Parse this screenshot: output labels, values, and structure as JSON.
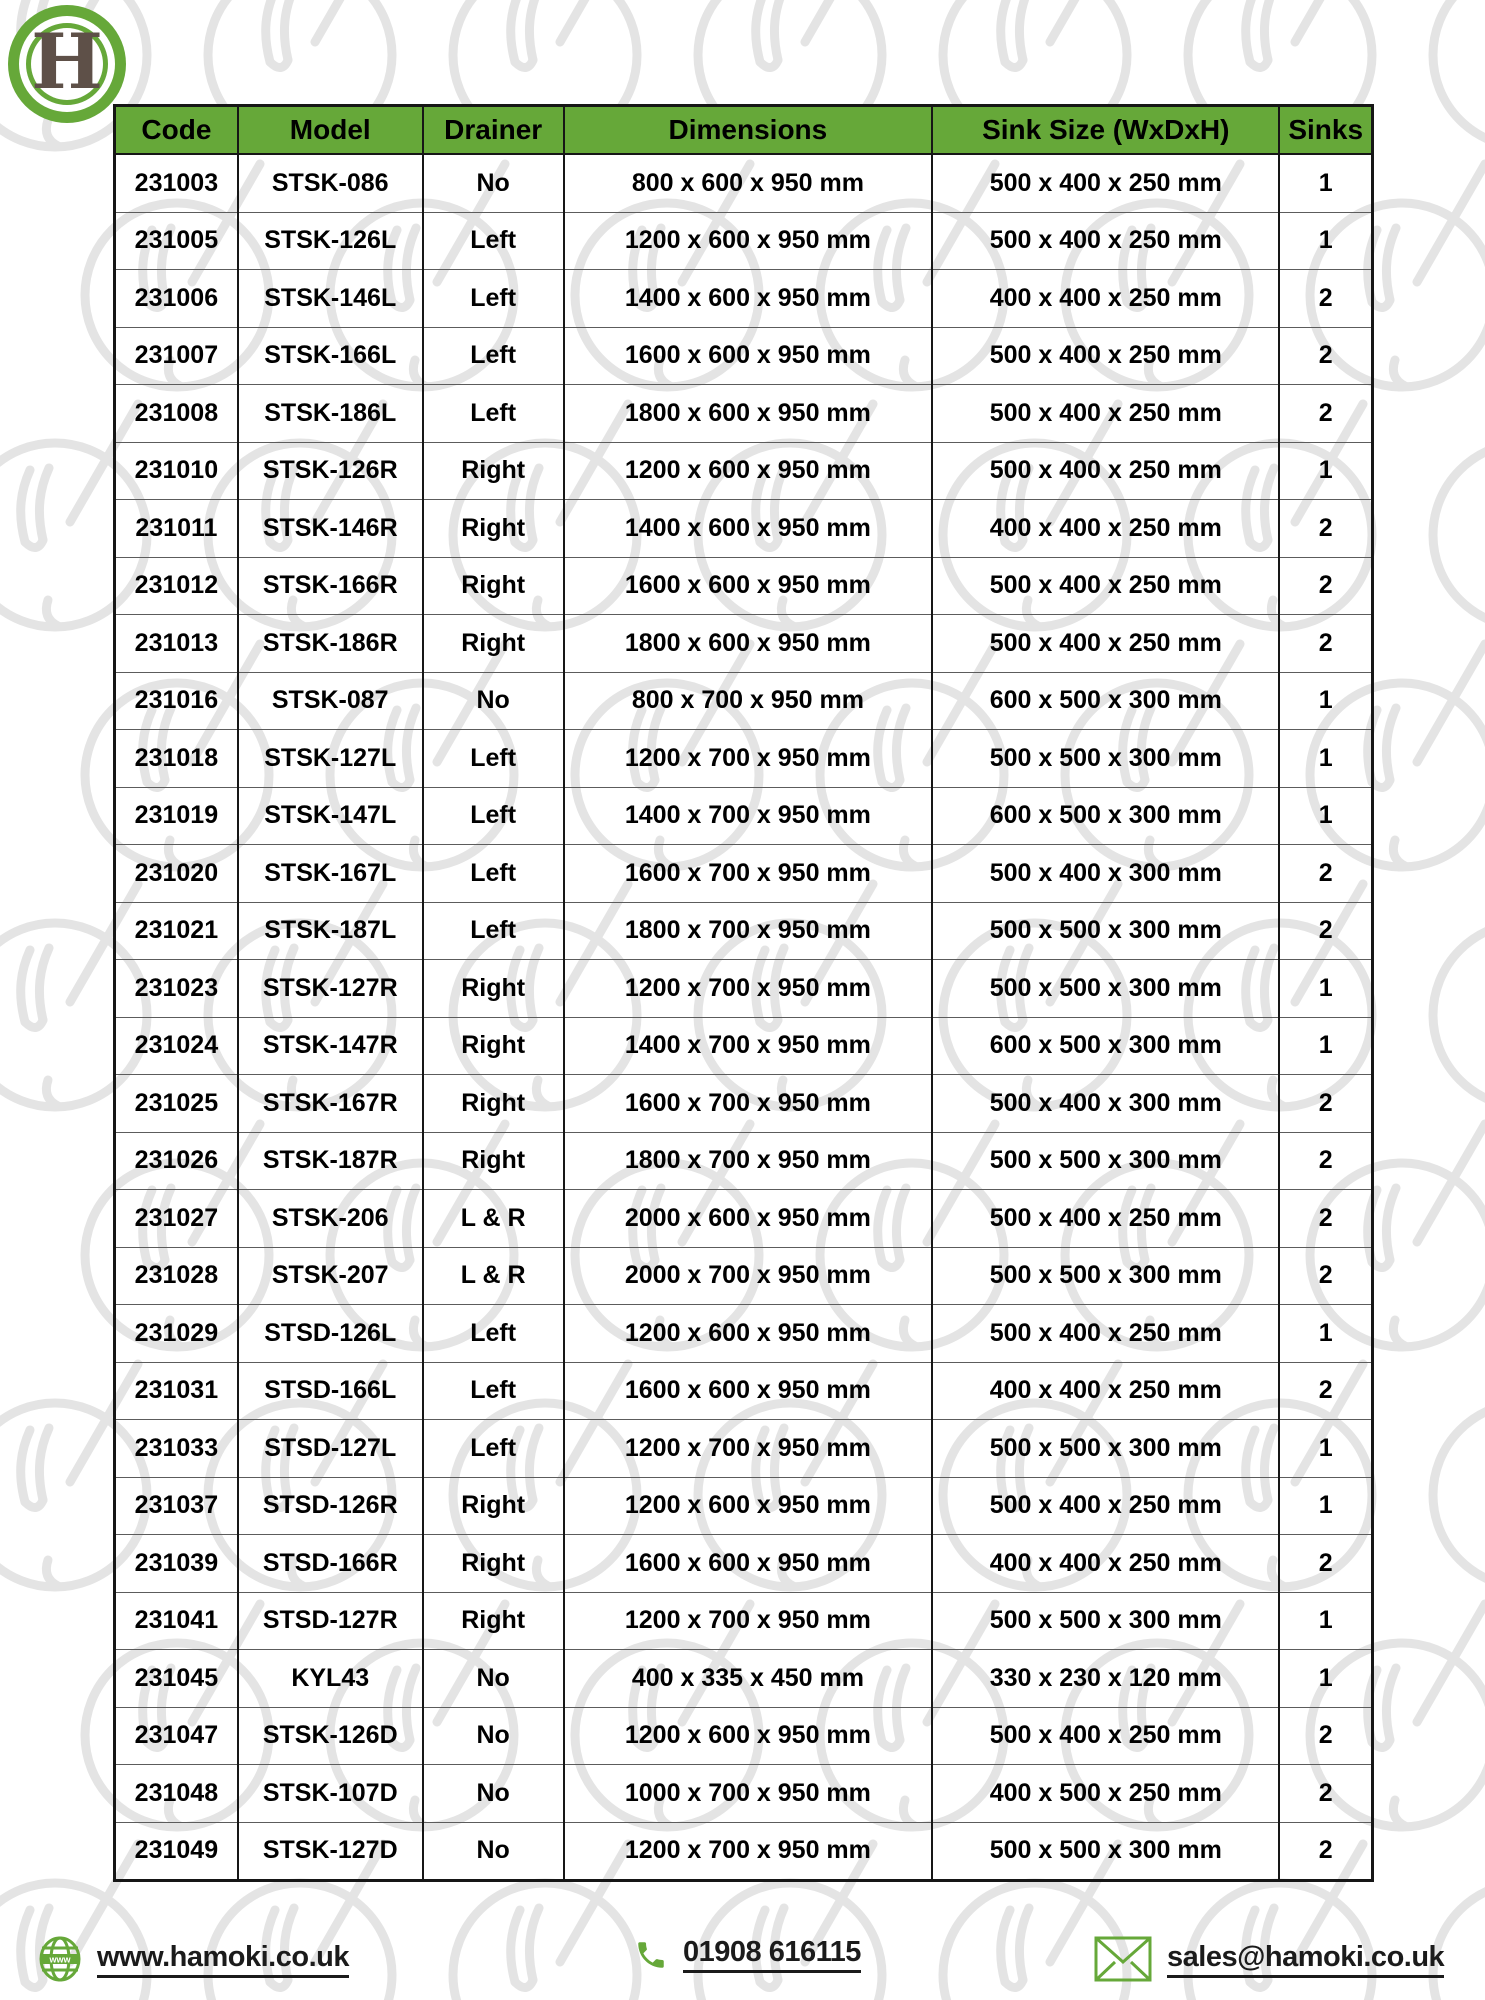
{
  "logo": {
    "letter": "H"
  },
  "colors": {
    "accent_green": "#66a839",
    "logo_h_brown": "#5e5048",
    "watermark_gray": "#e4e4e4",
    "text_black": "#000000"
  },
  "table": {
    "headers": [
      "Code",
      "Model",
      "Drainer",
      "Dimensions",
      "Sink Size (WxDxH)",
      "Sinks"
    ],
    "rows": [
      {
        "code": "231003",
        "model": "STSK-086",
        "drainer": "No",
        "dimensions": "800 x 600 x 950 mm",
        "sink_size": "500 x 400 x 250 mm",
        "sinks": "1"
      },
      {
        "code": "231005",
        "model": "STSK-126L",
        "drainer": "Left",
        "dimensions": "1200 x 600 x 950 mm",
        "sink_size": "500 x 400 x 250 mm",
        "sinks": "1"
      },
      {
        "code": "231006",
        "model": "STSK-146L",
        "drainer": "Left",
        "dimensions": "1400 x 600 x 950 mm",
        "sink_size": "400 x 400 x 250 mm",
        "sinks": "2"
      },
      {
        "code": "231007",
        "model": "STSK-166L",
        "drainer": "Left",
        "dimensions": "1600 x 600 x 950 mm",
        "sink_size": "500 x 400 x 250 mm",
        "sinks": "2"
      },
      {
        "code": "231008",
        "model": "STSK-186L",
        "drainer": "Left",
        "dimensions": "1800 x 600 x 950 mm",
        "sink_size": "500 x 400 x 250 mm",
        "sinks": "2"
      },
      {
        "code": "231010",
        "model": "STSK-126R",
        "drainer": "Right",
        "dimensions": "1200 x 600 x 950 mm",
        "sink_size": "500 x 400 x 250 mm",
        "sinks": "1"
      },
      {
        "code": "231011",
        "model": "STSK-146R",
        "drainer": "Right",
        "dimensions": "1400 x 600 x 950 mm",
        "sink_size": "400 x 400 x 250 mm",
        "sinks": "2"
      },
      {
        "code": "231012",
        "model": "STSK-166R",
        "drainer": "Right",
        "dimensions": "1600 x 600 x 950 mm",
        "sink_size": "500 x 400 x 250 mm",
        "sinks": "2"
      },
      {
        "code": "231013",
        "model": "STSK-186R",
        "drainer": "Right",
        "dimensions": "1800 x 600 x 950 mm",
        "sink_size": "500 x 400 x 250 mm",
        "sinks": "2"
      },
      {
        "code": "231016",
        "model": "STSK-087",
        "drainer": "No",
        "dimensions": "800 x 700 x 950 mm",
        "sink_size": "600 x 500 x 300 mm",
        "sinks": "1"
      },
      {
        "code": "231018",
        "model": "STSK-127L",
        "drainer": "Left",
        "dimensions": "1200 x 700 x 950 mm",
        "sink_size": "500 x 500 x 300 mm",
        "sinks": "1"
      },
      {
        "code": "231019",
        "model": "STSK-147L",
        "drainer": "Left",
        "dimensions": "1400 x 700 x 950 mm",
        "sink_size": "600 x 500 x 300 mm",
        "sinks": "1"
      },
      {
        "code": "231020",
        "model": "STSK-167L",
        "drainer": "Left",
        "dimensions": "1600 x 700 x 950 mm",
        "sink_size": "500 x 400 x 300 mm",
        "sinks": "2"
      },
      {
        "code": "231021",
        "model": "STSK-187L",
        "drainer": "Left",
        "dimensions": "1800 x 700 x 950 mm",
        "sink_size": "500 x 500 x 300 mm",
        "sinks": "2"
      },
      {
        "code": "231023",
        "model": "STSK-127R",
        "drainer": "Right",
        "dimensions": "1200 x 700 x 950 mm",
        "sink_size": "500 x 500 x 300 mm",
        "sinks": "1"
      },
      {
        "code": "231024",
        "model": "STSK-147R",
        "drainer": "Right",
        "dimensions": "1400 x 700 x 950 mm",
        "sink_size": "600 x 500 x 300 mm",
        "sinks": "1"
      },
      {
        "code": "231025",
        "model": "STSK-167R",
        "drainer": "Right",
        "dimensions": "1600 x 700 x 950 mm",
        "sink_size": "500 x 400 x 300 mm",
        "sinks": "2"
      },
      {
        "code": "231026",
        "model": "STSK-187R",
        "drainer": "Right",
        "dimensions": "1800 x 700 x 950 mm",
        "sink_size": "500 x 500 x 300 mm",
        "sinks": "2"
      },
      {
        "code": "231027",
        "model": "STSK-206",
        "drainer": "L & R",
        "dimensions": "2000 x 600 x 950 mm",
        "sink_size": "500 x 400 x 250 mm",
        "sinks": "2"
      },
      {
        "code": "231028",
        "model": "STSK-207",
        "drainer": "L & R",
        "dimensions": "2000 x 700 x 950 mm",
        "sink_size": "500 x 500 x 300 mm",
        "sinks": "2"
      },
      {
        "code": "231029",
        "model": "STSD-126L",
        "drainer": "Left",
        "dimensions": "1200 x 600 x 950 mm",
        "sink_size": "500 x 400 x 250 mm",
        "sinks": "1"
      },
      {
        "code": "231031",
        "model": "STSD-166L",
        "drainer": "Left",
        "dimensions": "1600 x 600 x 950 mm",
        "sink_size": "400 x 400 x 250 mm",
        "sinks": "2"
      },
      {
        "code": "231033",
        "model": "STSD-127L",
        "drainer": "Left",
        "dimensions": "1200 x 700 x 950 mm",
        "sink_size": "500 x 500 x 300 mm",
        "sinks": "1"
      },
      {
        "code": "231037",
        "model": "STSD-126R",
        "drainer": "Right",
        "dimensions": "1200 x 600 x 950 mm",
        "sink_size": "500 x 400 x 250 mm",
        "sinks": "1"
      },
      {
        "code": "231039",
        "model": "STSD-166R",
        "drainer": "Right",
        "dimensions": "1600 x 600 x 950 mm",
        "sink_size": "400 x 400 x 250 mm",
        "sinks": "2"
      },
      {
        "code": "231041",
        "model": "STSD-127R",
        "drainer": "Right",
        "dimensions": "1200 x 700 x 950 mm",
        "sink_size": "500 x 500 x 300 mm",
        "sinks": "1"
      },
      {
        "code": "231045",
        "model": "KYL43",
        "drainer": "No",
        "dimensions": "400 x 335 x 450 mm",
        "sink_size": "330 x 230 x 120 mm",
        "sinks": "1"
      },
      {
        "code": "231047",
        "model": "STSK-126D",
        "drainer": "No",
        "dimensions": "1200 x 600 x 950 mm",
        "sink_size": "500 x 400 x 250 mm",
        "sinks": "2"
      },
      {
        "code": "231048",
        "model": "STSK-107D",
        "drainer": "No",
        "dimensions": "1000 x 700 x 950 mm",
        "sink_size": "400 x 500 x 250 mm",
        "sinks": "2"
      },
      {
        "code": "231049",
        "model": "STSK-127D",
        "drainer": "No",
        "dimensions": "1200 x 700 x 950 mm",
        "sink_size": "500 x 500 x 300 mm",
        "sinks": "2"
      }
    ]
  },
  "footer": {
    "website": "www.hamoki.co.uk",
    "phone": "01908 616115",
    "email": "sales@hamoki.co.uk",
    "globe_icon_label": "www"
  }
}
